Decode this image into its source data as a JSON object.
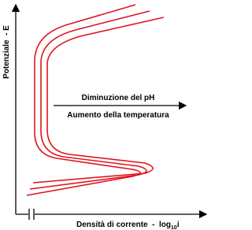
{
  "axes": {
    "y_label": "Potenziale  - E",
    "x_label": "Densità di corrente  -  log",
    "x_label_subscript": "10",
    "x_label_suffix": "i"
  },
  "arrow": {
    "label_above": "Diminuzione del pH",
    "label_below": "Aumento della temperatura"
  }
}
